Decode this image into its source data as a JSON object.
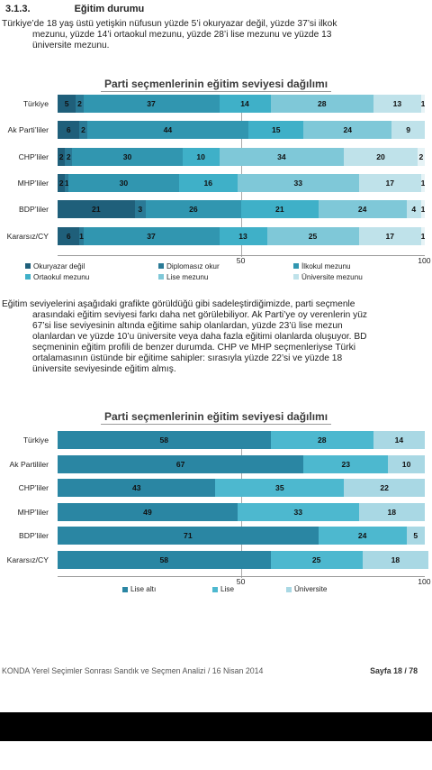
{
  "section": {
    "number": "3.1.3.",
    "title": "Eğitim durumu"
  },
  "para1": {
    "line1": "Türkiye’de 18 yaş üstü yetişkin nüfusun yüzde 5’i okuryazar değil, yüzde 37’si ilkok",
    "line2": "mezunu, yüzde 14’i ortaokul mezunu, yüzde 28’i lise mezunu ve yüzde 13",
    "line3": "üniversite mezunu."
  },
  "para2": {
    "line1": "Eğitim seviyelerini aşağıdaki grafikte görüldüğü gibi sadeleştirdiğimizde, parti seçmenle",
    "line2": "arasındaki eğitim seviyesi farkı daha net görülebiliyor. Ak Parti’ye oy verenlerin yüz",
    "line3": "67’si lise seviyesinin altında eğitime sahip olanlardan, yüzde 23’ü lise mezun",
    "line4": "olanlardan ve yüzde 10’u üniversite veya daha fazla eğitimi olanlarda oluşuyor. BD",
    "line5": "seçmeninin eğitim profili de benzer durumda. CHP ve MHP seçmenleriyse Türki",
    "line6": "ortalamasının üstünde bir eğitime sahipler: sırasıyla yüzde 22’si ve yüzde 18",
    "line7": "üniversite seviyesinde eğitim almış."
  },
  "footer": {
    "left": "KONDA Yerel Seçimler Sonrası Sandık ve Seçmen Analizi / 16 Nisan 2014",
    "right": "Sayfa 18 / 78"
  },
  "chart_data": [
    {
      "type": "bar",
      "stacked": true,
      "orientation": "horizontal",
      "title": "Parti seçmenlerinin eğitim seviyesi dağılımı",
      "categories": [
        "Türkiye",
        "Ak Parti’liler",
        "CHP’liler",
        "MHP’liler",
        "BDP’liler",
        "Kararsız/CY"
      ],
      "series": [
        {
          "name": "Okuryazar değil",
          "color": "#1f5f7a",
          "values": [
            5,
            6,
            2,
            2,
            21,
            6
          ]
        },
        {
          "name": "Diplomasız okur",
          "color": "#2a7a96",
          "values": [
            2,
            2,
            2,
            1,
            3,
            1
          ]
        },
        {
          "name": "İlkokul mezunu",
          "color": "#3196b0",
          "values": [
            37,
            44,
            30,
            30,
            26,
            37
          ]
        },
        {
          "name": "Ortaokul mezunu",
          "color": "#3fb0c8",
          "values": [
            14,
            15,
            10,
            16,
            21,
            13
          ]
        },
        {
          "name": "Lise mezunu",
          "color": "#7fc8d8",
          "values": [
            28,
            24,
            34,
            33,
            24,
            25
          ]
        },
        {
          "name": "Üniversite mezunu",
          "color": "#bfe2ea",
          "values": [
            13,
            9,
            20,
            17,
            4,
            17
          ]
        },
        {
          "name": "",
          "color": "#e6f3f6",
          "values": [
            1,
            0,
            2,
            1,
            1,
            1
          ]
        }
      ],
      "xlim": [
        0,
        100
      ],
      "ticks": [
        "50",
        "100"
      ],
      "legend_placement": "bottom"
    },
    {
      "type": "bar",
      "stacked": true,
      "orientation": "horizontal",
      "title": "Parti seçmenlerinin eğitim seviyesi dağılımı",
      "categories": [
        "Türkiye",
        "Ak Partililer",
        "CHP’liler",
        "MHP’liler",
        "BDP’liler",
        "Kararsız/CY"
      ],
      "series": [
        {
          "name": "Lise altı",
          "color": "#2a86a3",
          "values": [
            58,
            67,
            43,
            49,
            71,
            58
          ]
        },
        {
          "name": "Lise",
          "color": "#4db8cf",
          "values": [
            28,
            23,
            35,
            33,
            24,
            25
          ]
        },
        {
          "name": "Üniversite",
          "color": "#a9d8e4",
          "values": [
            14,
            10,
            22,
            18,
            5,
            18
          ]
        }
      ],
      "xlim": [
        0,
        100
      ],
      "ticks": [
        "50",
        "100"
      ],
      "legend_placement": "bottom"
    }
  ]
}
